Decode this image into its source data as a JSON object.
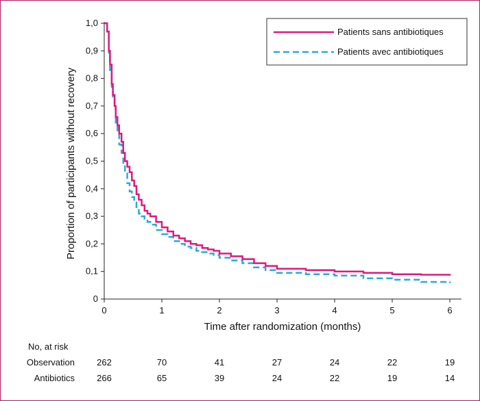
{
  "chart_data": {
    "type": "line",
    "xlabel": "Time after randomization (months)",
    "ylabel": "Proportion of participants without recovery",
    "xlim": [
      0,
      6
    ],
    "ylim": [
      0,
      1
    ],
    "x_ticks": [
      "0",
      "1",
      "2",
      "3",
      "4",
      "5",
      "6"
    ],
    "y_ticks": [
      "0",
      "0,1",
      "0,2",
      "0,3",
      "0,4",
      "0,5",
      "0,6",
      "0,7",
      "0,8",
      "0,9",
      "1,0"
    ],
    "legend_position": "top-right",
    "series": [
      {
        "name": "Patients sans antibiotiques",
        "color": "#e0177e",
        "style": "solid",
        "x": [
          0,
          0.05,
          0.08,
          0.1,
          0.13,
          0.15,
          0.18,
          0.2,
          0.23,
          0.26,
          0.3,
          0.33,
          0.36,
          0.4,
          0.44,
          0.48,
          0.52,
          0.56,
          0.6,
          0.65,
          0.7,
          0.75,
          0.8,
          0.9,
          1.0,
          1.1,
          1.2,
          1.3,
          1.4,
          1.5,
          1.6,
          1.7,
          1.8,
          1.9,
          2.0,
          2.2,
          2.4,
          2.6,
          2.8,
          3.0,
          3.5,
          4.0,
          4.5,
          5.0,
          5.5,
          6.0
        ],
        "y": [
          1.0,
          0.97,
          0.9,
          0.85,
          0.78,
          0.74,
          0.7,
          0.66,
          0.63,
          0.6,
          0.57,
          0.53,
          0.5,
          0.48,
          0.46,
          0.43,
          0.41,
          0.38,
          0.36,
          0.34,
          0.32,
          0.31,
          0.3,
          0.28,
          0.26,
          0.245,
          0.23,
          0.22,
          0.21,
          0.2,
          0.195,
          0.185,
          0.18,
          0.175,
          0.165,
          0.155,
          0.145,
          0.13,
          0.12,
          0.11,
          0.105,
          0.1,
          0.095,
          0.09,
          0.088,
          0.085
        ]
      },
      {
        "name": "Patients avec antibiotiques",
        "color": "#29a8e0",
        "style": "dashed",
        "x": [
          0,
          0.05,
          0.08,
          0.1,
          0.13,
          0.15,
          0.18,
          0.2,
          0.23,
          0.26,
          0.3,
          0.33,
          0.36,
          0.4,
          0.44,
          0.48,
          0.52,
          0.56,
          0.6,
          0.65,
          0.7,
          0.75,
          0.8,
          0.9,
          1.0,
          1.1,
          1.2,
          1.3,
          1.4,
          1.5,
          1.6,
          1.7,
          1.8,
          1.9,
          2.0,
          2.2,
          2.4,
          2.6,
          2.8,
          3.0,
          3.5,
          4.0,
          4.5,
          5.0,
          5.5,
          6.0
        ],
        "y": [
          1.0,
          0.97,
          0.89,
          0.83,
          0.77,
          0.73,
          0.69,
          0.64,
          0.6,
          0.56,
          0.53,
          0.49,
          0.46,
          0.42,
          0.39,
          0.37,
          0.35,
          0.33,
          0.31,
          0.3,
          0.29,
          0.28,
          0.27,
          0.25,
          0.235,
          0.225,
          0.21,
          0.2,
          0.19,
          0.185,
          0.175,
          0.17,
          0.165,
          0.16,
          0.15,
          0.14,
          0.13,
          0.115,
          0.105,
          0.095,
          0.09,
          0.085,
          0.075,
          0.07,
          0.062,
          0.058
        ]
      }
    ]
  },
  "risk_table": {
    "header": "No, at risk",
    "rows": [
      {
        "label": "Observation",
        "values": [
          "262",
          "70",
          "41",
          "27",
          "24",
          "22",
          "19"
        ]
      },
      {
        "label": "Antibiotics",
        "values": [
          "266",
          "65",
          "39",
          "24",
          "22",
          "19",
          "14"
        ]
      }
    ]
  }
}
